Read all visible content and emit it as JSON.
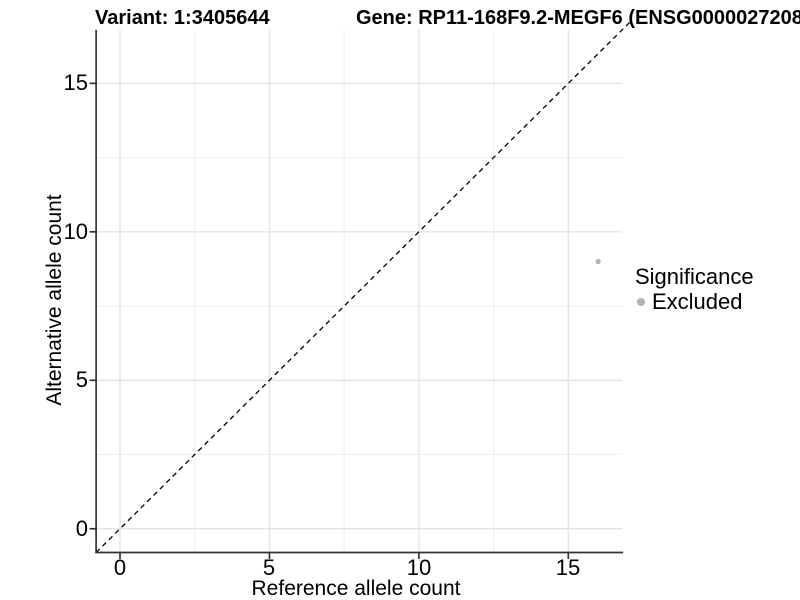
{
  "chart_data": {
    "type": "scatter",
    "titles": {
      "variant": "Variant: 1:3405644",
      "gene": "Gene: RP11-168F9.2-MEGF6 (ENSG0000027208"
    },
    "xlabel": "Reference allele count",
    "ylabel": "Alternative allele count",
    "xlim": [
      -0.8,
      16.8
    ],
    "ylim": [
      -0.8,
      16.8
    ],
    "x_ticks": [
      0,
      5,
      10,
      15
    ],
    "y_ticks": [
      0,
      5,
      10,
      15
    ],
    "x_minor_ticks": [
      2.5,
      7.5,
      12.5
    ],
    "y_minor_ticks": [
      2.5,
      7.5,
      12.5
    ],
    "grid": true,
    "identity_line": {
      "type": "dashed",
      "slope": 1,
      "intercept": 0,
      "color": "#000000"
    },
    "points": [
      {
        "x": 16,
        "y": 9,
        "significance": "Excluded",
        "color": "#b3b3b3"
      }
    ],
    "legend": {
      "title": "Significance",
      "position": "right",
      "items": [
        {
          "label": "Excluded",
          "color": "#b3b3b3"
        }
      ]
    },
    "colors": {
      "axis_line": "#333333",
      "major_grid": "#e4e4e4",
      "minor_grid": "#f0f0f0",
      "point": "#b3b3b3",
      "text": "#000000"
    }
  }
}
